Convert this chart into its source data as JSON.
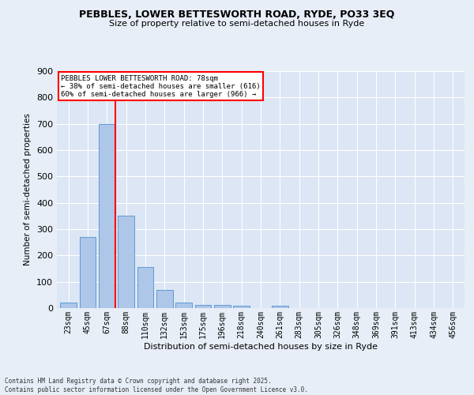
{
  "title_line1": "PEBBLES, LOWER BETTESWORTH ROAD, RYDE, PO33 3EQ",
  "title_line2": "Size of property relative to semi-detached houses in Ryde",
  "xlabel": "Distribution of semi-detached houses by size in Ryde",
  "ylabel": "Number of semi-detached properties",
  "bar_labels": [
    "23sqm",
    "45sqm",
    "67sqm",
    "88sqm",
    "110sqm",
    "132sqm",
    "153sqm",
    "175sqm",
    "196sqm",
    "218sqm",
    "240sqm",
    "261sqm",
    "283sqm",
    "305sqm",
    "326sqm",
    "348sqm",
    "369sqm",
    "391sqm",
    "413sqm",
    "434sqm",
    "456sqm"
  ],
  "bar_values": [
    20,
    270,
    700,
    350,
    155,
    70,
    22,
    12,
    13,
    8,
    0,
    8,
    0,
    0,
    0,
    0,
    0,
    0,
    0,
    0,
    0
  ],
  "bar_color": "#aec6e8",
  "bar_edge_color": "#5b9bd5",
  "vline_color": "red",
  "vline_x": 2.42,
  "annotation_title": "PEBBLES LOWER BETTESWORTH ROAD: 78sqm",
  "annotation_line1": "← 38% of semi-detached houses are smaller (616)",
  "annotation_line2": "60% of semi-detached houses are larger (966) →",
  "ylim": [
    0,
    900
  ],
  "yticks": [
    0,
    100,
    200,
    300,
    400,
    500,
    600,
    700,
    800,
    900
  ],
  "background_color": "#e8eef8",
  "plot_bg_color": "#dce6f5",
  "grid_color": "#ffffff",
  "footer_line1": "Contains HM Land Registry data © Crown copyright and database right 2025.",
  "footer_line2": "Contains public sector information licensed under the Open Government Licence v3.0."
}
